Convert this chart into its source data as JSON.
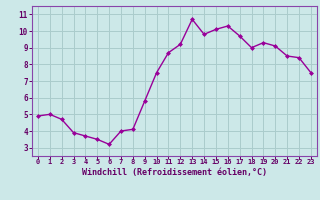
{
  "x": [
    0,
    1,
    2,
    3,
    4,
    5,
    6,
    7,
    8,
    9,
    10,
    11,
    12,
    13,
    14,
    15,
    16,
    17,
    18,
    19,
    20,
    21,
    22,
    23
  ],
  "y": [
    4.9,
    5.0,
    4.7,
    3.9,
    3.7,
    3.5,
    3.2,
    4.0,
    4.1,
    5.8,
    7.5,
    8.7,
    9.2,
    10.7,
    9.8,
    10.1,
    10.3,
    9.7,
    9.0,
    9.3,
    9.1,
    8.5,
    8.4,
    7.5
  ],
  "line_color": "#990099",
  "marker": "D",
  "marker_size": 2.0,
  "bg_color": "#cce8e8",
  "grid_color": "#aacccc",
  "xlabel": "Windchill (Refroidissement éolien,°C)",
  "xlabel_color": "#660066",
  "tick_color": "#660066",
  "ylabel_ticks": [
    3,
    4,
    5,
    6,
    7,
    8,
    9,
    10,
    11
  ],
  "ylim": [
    2.5,
    11.5
  ],
  "xlim": [
    -0.5,
    23.5
  ],
  "xtick_labels": [
    "0",
    "1",
    "2",
    "3",
    "4",
    "5",
    "6",
    "7",
    "8",
    "9",
    "10",
    "11",
    "12",
    "13",
    "14",
    "15",
    "16",
    "17",
    "18",
    "19",
    "20",
    "21",
    "22",
    "23"
  ],
  "spine_color": "#8844aa",
  "xlabel_fontsize": 6.0,
  "xtick_fontsize": 5.0,
  "ytick_fontsize": 5.5,
  "linewidth": 1.0
}
